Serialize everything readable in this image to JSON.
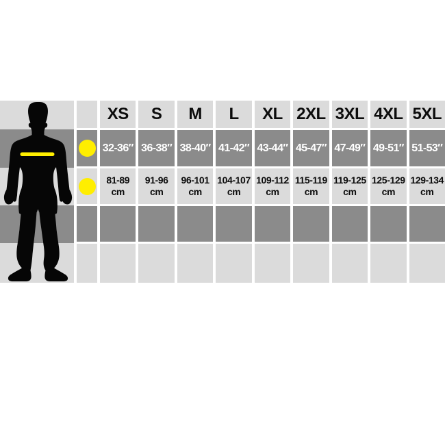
{
  "table": {
    "sizes": [
      "XS",
      "S",
      "M",
      "L",
      "XL",
      "2XL",
      "3XL",
      "4XL",
      "5XL"
    ],
    "chest_in": [
      "32-36″",
      "36-38″",
      "38-40″",
      "41-42″",
      "43-44″",
      "45-47″",
      "47-49″",
      "49-51″",
      "51-53″"
    ],
    "chest_cm": [
      "81-89",
      "91-96",
      "96-101",
      "104-107",
      "109-112",
      "115-119",
      "119-125",
      "125-129",
      "129-134"
    ],
    "cm_unit": "cm"
  },
  "colors": {
    "light": "#dbdbdb",
    "dark": "#8b8b8b",
    "yellow": "#ffee00",
    "silhouette": "#060606",
    "text": "#0c0c0c"
  },
  "chart_data": {
    "type": "table",
    "categories": [
      "XS",
      "S",
      "M",
      "L",
      "XL",
      "2XL",
      "3XL",
      "4XL",
      "5XL"
    ],
    "series": [
      {
        "name": "chest_inches",
        "values": [
          "32-36″",
          "36-38″",
          "38-40″",
          "41-42″",
          "43-44″",
          "45-47″",
          "47-49″",
          "49-51″",
          "51-53″"
        ]
      },
      {
        "name": "chest_cm",
        "values": [
          "81-89 cm",
          "91-96 cm",
          "96-101 cm",
          "104-107 cm",
          "109-112 cm",
          "115-119 cm",
          "119-125 cm",
          "125-129 cm",
          "129-134 cm"
        ]
      }
    ],
    "legend_marker": "yellow dot = chest measurement line on body silhouette"
  }
}
